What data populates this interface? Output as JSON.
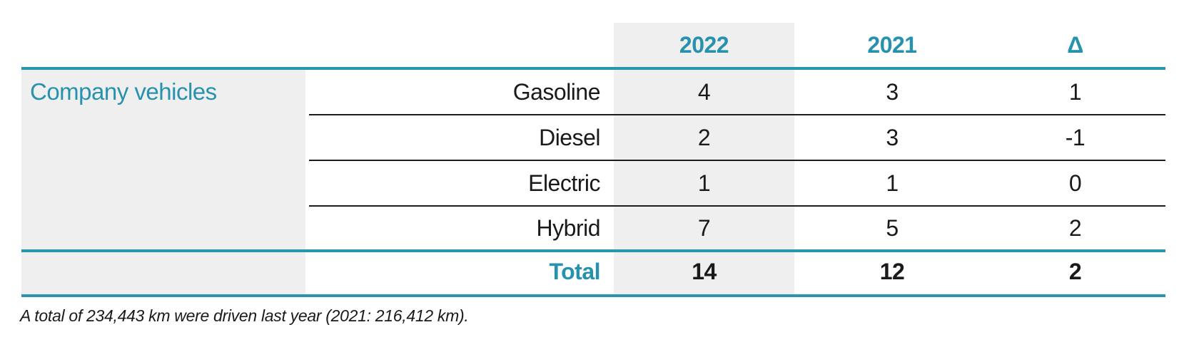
{
  "table": {
    "group_label": "Company vehicles",
    "columns": {
      "y2022": "2022",
      "y2021": "2021",
      "delta": "Δ"
    },
    "rows": [
      {
        "category": "Gasoline",
        "y2022": "4",
        "y2021": "3",
        "delta": "1"
      },
      {
        "category": "Diesel",
        "y2022": "2",
        "y2021": "3",
        "delta": "-1"
      },
      {
        "category": "Electric",
        "y2022": "1",
        "y2021": "1",
        "delta": "0"
      },
      {
        "category": "Hybrid",
        "y2022": "7",
        "y2021": "5",
        "delta": "2"
      }
    ],
    "total": {
      "label": "Total",
      "y2022": "14",
      "y2021": "12",
      "delta": "2"
    }
  },
  "footnote": "A total of 234,443 km were driven last year (2021: 216,412 km).",
  "colors": {
    "accent_teal": "#2b95ae",
    "stripe_gray": "#f0efef",
    "text_black": "#1a1a1a"
  },
  "chart_data": {
    "type": "table",
    "title": "Company vehicles",
    "categories": [
      "Gasoline",
      "Diesel",
      "Electric",
      "Hybrid",
      "Total"
    ],
    "series": [
      {
        "name": "2022",
        "values": [
          4,
          2,
          1,
          7,
          14
        ]
      },
      {
        "name": "2021",
        "values": [
          3,
          3,
          1,
          5,
          12
        ]
      },
      {
        "name": "Δ",
        "values": [
          1,
          -1,
          0,
          2,
          2
        ]
      }
    ],
    "annotations": [
      "A total of 234,443 km were driven last year (2021: 216,412 km)."
    ]
  }
}
